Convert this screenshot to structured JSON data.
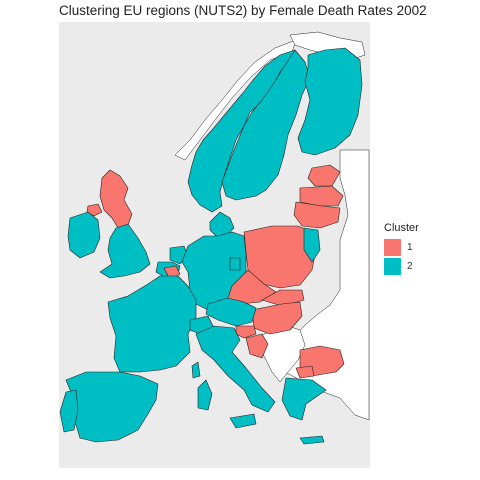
{
  "title": "Clustering EU regions (NUTS2) by Female Death Rates 2002",
  "legend": {
    "title": "Cluster",
    "items": [
      {
        "label": "1",
        "color": "#F8766D"
      },
      {
        "label": "2",
        "color": "#00BFC4"
      }
    ]
  },
  "colors": {
    "panel_background": "#EBEBEB",
    "non_eu_land": "#FFFFFF",
    "border": "#222222"
  },
  "map_regions": [
    {
      "name": "Norway",
      "cluster": "2"
    },
    {
      "name": "Sweden",
      "cluster": "2"
    },
    {
      "name": "Finland",
      "cluster": "2"
    },
    {
      "name": "Estonia",
      "cluster": "1"
    },
    {
      "name": "Latvia",
      "cluster": "1"
    },
    {
      "name": "Lithuania",
      "cluster": "1"
    },
    {
      "name": "Denmark",
      "cluster": "2"
    },
    {
      "name": "Scotland",
      "cluster": "1"
    },
    {
      "name": "Northern Ireland",
      "cluster": "1"
    },
    {
      "name": "England and Wales",
      "cluster": "2"
    },
    {
      "name": "Ireland",
      "cluster": "2"
    },
    {
      "name": "Netherlands",
      "cluster": "2"
    },
    {
      "name": "Belgium",
      "cluster": "2"
    },
    {
      "name": "Wallonia",
      "cluster": "1"
    },
    {
      "name": "Germany",
      "cluster": "2"
    },
    {
      "name": "Berlin",
      "cluster": "2"
    },
    {
      "name": "Poland",
      "cluster": "1"
    },
    {
      "name": "Poland (east)",
      "cluster": "2"
    },
    {
      "name": "Czechia",
      "cluster": "1"
    },
    {
      "name": "Slovakia",
      "cluster": "1"
    },
    {
      "name": "Hungary",
      "cluster": "1"
    },
    {
      "name": "Austria",
      "cluster": "2"
    },
    {
      "name": "Slovenia",
      "cluster": "1"
    },
    {
      "name": "Croatia",
      "cluster": "1"
    },
    {
      "name": "France",
      "cluster": "2"
    },
    {
      "name": "Switzerland",
      "cluster": "2"
    },
    {
      "name": "Italy",
      "cluster": "2"
    },
    {
      "name": "Sardinia",
      "cluster": "2"
    },
    {
      "name": "Sicily",
      "cluster": "2"
    },
    {
      "name": "Corsica",
      "cluster": "2"
    },
    {
      "name": "Spain",
      "cluster": "2"
    },
    {
      "name": "Portugal",
      "cluster": "2"
    },
    {
      "name": "Bulgaria",
      "cluster": "1"
    },
    {
      "name": "North Macedonia",
      "cluster": "1"
    },
    {
      "name": "Greece",
      "cluster": "2"
    },
    {
      "name": "Crete",
      "cluster": "2"
    }
  ]
}
